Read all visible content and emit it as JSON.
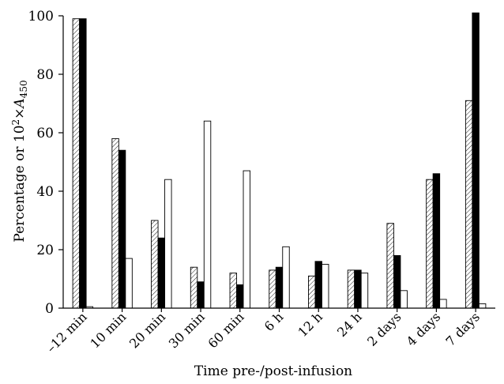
{
  "chart_data": {
    "type": "bar",
    "xlabel": "Time pre-/post-infusion",
    "ylabel_parts": {
      "prefix": "Percentage or 10",
      "sup": "2",
      "times": "×A",
      "sub": "450"
    },
    "ylim": [
      0,
      100
    ],
    "yticks": [
      0,
      20,
      40,
      60,
      80,
      100
    ],
    "categories": [
      "–12 min",
      "10 min",
      "20 min",
      "30 min",
      "60 min",
      "6 h",
      "12 h",
      "24 h",
      "2 days",
      "4 days",
      "7 days"
    ],
    "series": [
      {
        "fill": "hatched",
        "values": [
          99,
          58,
          30,
          14,
          12,
          13,
          11,
          13,
          29,
          44,
          71
        ]
      },
      {
        "fill": "solid",
        "values": [
          99,
          54,
          24,
          9,
          8,
          14,
          16,
          13,
          18,
          46,
          101
        ]
      },
      {
        "fill": "open",
        "values": [
          0.5,
          17,
          44,
          64,
          47,
          21,
          15,
          12,
          6,
          3,
          1.5
        ]
      }
    ],
    "grid": false,
    "legend": "none"
  }
}
